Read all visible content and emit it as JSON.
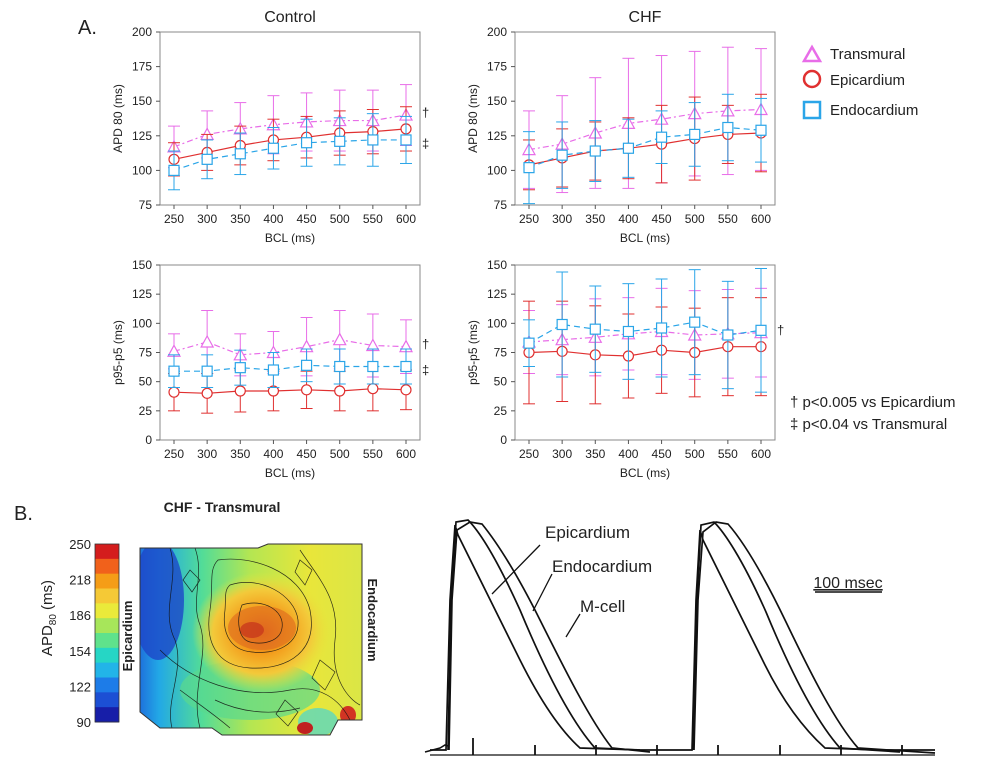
{
  "panel_labels": {
    "a": "A.",
    "b": "B."
  },
  "legend": [
    {
      "label": "Transmural",
      "marker": "triangle",
      "color": "#e86de8"
    },
    {
      "label": "Epicardium",
      "marker": "circle",
      "color": "#e03030"
    },
    {
      "label": "Endocardium",
      "marker": "square",
      "color": "#2aa5e8"
    }
  ],
  "significance": [
    "† p<0.005 vs Epicardium",
    "‡ p<0.04 vs Transmural"
  ],
  "chart_data": [
    {
      "type": "line",
      "title": "Control",
      "xlabel": "BCL (ms)",
      "ylabel": "APD 80 (ms)",
      "x": [
        250,
        300,
        350,
        400,
        450,
        500,
        550,
        600
      ],
      "ylim": [
        75,
        200
      ],
      "yticks": [
        75,
        100,
        125,
        150,
        175,
        200
      ],
      "marks": [
        "†",
        "‡"
      ],
      "series": [
        {
          "name": "Transmural",
          "values": [
            117,
            126,
            130,
            133,
            135,
            136,
            136,
            140
          ],
          "err": [
            15,
            17,
            19,
            21,
            21,
            22,
            22,
            22
          ]
        },
        {
          "name": "Epicardium",
          "values": [
            108,
            113,
            118,
            122,
            124,
            127,
            128,
            130
          ],
          "err": [
            12,
            13,
            14,
            15,
            15,
            16,
            16,
            16
          ]
        },
        {
          "name": "Endocardium",
          "values": [
            100,
            108,
            112,
            116,
            120,
            121,
            122,
            122
          ],
          "err": [
            14,
            14,
            15,
            15,
            17,
            17,
            19,
            17
          ]
        }
      ]
    },
    {
      "type": "line",
      "title": "CHF",
      "xlabel": "BCL (ms)",
      "ylabel": "APD 80 (ms)",
      "x": [
        250,
        300,
        350,
        400,
        450,
        500,
        550,
        600
      ],
      "ylim": [
        75,
        200
      ],
      "yticks": [
        75,
        100,
        125,
        150,
        175,
        200
      ],
      "marks": [],
      "series": [
        {
          "name": "Transmural",
          "values": [
            115,
            119,
            127,
            134,
            137,
            141,
            143,
            144
          ],
          "err": [
            28,
            35,
            40,
            47,
            46,
            45,
            46,
            44
          ]
        },
        {
          "name": "Epicardium",
          "values": [
            104,
            109,
            114,
            116,
            119,
            123,
            126,
            127
          ],
          "err": [
            18,
            21,
            21,
            22,
            28,
            30,
            21,
            28
          ]
        },
        {
          "name": "Endocardium",
          "values": [
            102,
            111,
            114,
            116,
            124,
            126,
            131,
            129
          ],
          "err": [
            26,
            24,
            22,
            21,
            19,
            23,
            24,
            23
          ]
        }
      ]
    },
    {
      "type": "line",
      "title": "",
      "xlabel": "BCL (ms)",
      "ylabel": "p95-p5 (ms)",
      "x": [
        250,
        300,
        350,
        400,
        450,
        500,
        550,
        600
      ],
      "ylim": [
        0,
        150
      ],
      "yticks": [
        0,
        25,
        50,
        75,
        100,
        125,
        150
      ],
      "marks": [
        "†",
        "‡"
      ],
      "series": [
        {
          "name": "Transmural",
          "values": [
            76,
            84,
            73,
            75,
            80,
            86,
            81,
            80
          ],
          "err": [
            15,
            27,
            18,
            18,
            25,
            25,
            27,
            23
          ]
        },
        {
          "name": "Epicardium",
          "values": [
            41,
            40,
            42,
            42,
            43,
            42,
            44,
            43
          ],
          "err": [
            16,
            17,
            18,
            17,
            16,
            17,
            19,
            17
          ]
        },
        {
          "name": "Endocardium",
          "values": [
            59,
            59,
            62,
            60,
            64,
            63,
            63,
            63
          ],
          "err": [
            14,
            14,
            15,
            15,
            14,
            15,
            15,
            15
          ]
        }
      ]
    },
    {
      "type": "line",
      "title": "",
      "xlabel": "BCL (ms)",
      "ylabel": "p95-p5 (ms)",
      "x": [
        250,
        300,
        350,
        400,
        450,
        500,
        550,
        600
      ],
      "ylim": [
        0,
        150
      ],
      "yticks": [
        0,
        25,
        50,
        75,
        100,
        125,
        150
      ],
      "marks": [
        "†"
      ],
      "series": [
        {
          "name": "Transmural",
          "values": [
            84,
            86,
            88,
            91,
            93,
            90,
            91,
            92
          ],
          "err": [
            27,
            30,
            33,
            31,
            37,
            38,
            38,
            38
          ]
        },
        {
          "name": "Epicardium",
          "values": [
            75,
            76,
            73,
            72,
            77,
            75,
            80,
            80
          ],
          "err": [
            44,
            43,
            42,
            36,
            37,
            38,
            42,
            42
          ]
        },
        {
          "name": "Endocardium",
          "values": [
            83,
            99,
            95,
            93,
            96,
            101,
            90,
            94
          ],
          "err": [
            20,
            45,
            37,
            41,
            42,
            45,
            46,
            53
          ]
        }
      ]
    }
  ],
  "map": {
    "title": "CHF - Transmural",
    "colorbar_label": "APD",
    "colorbar_sub": "80",
    "colorbar_unit": "(ms)",
    "ticks": [
      250,
      218,
      186,
      154,
      122,
      90
    ],
    "colors": [
      "#d41d1d",
      "#f1611b",
      "#f59d17",
      "#f5c936",
      "#eaea3a",
      "#a7e65a",
      "#5fe28c",
      "#26d6c5",
      "#22b4e8",
      "#1d7ce8",
      "#1c4fd4",
      "#171ea8"
    ],
    "left_label": "Epicardium",
    "right_label": "Endocardium"
  },
  "traces": {
    "labels": [
      "Epicardium",
      "Endocardium",
      "M-cell"
    ],
    "scalebar_label": "100 msec"
  }
}
